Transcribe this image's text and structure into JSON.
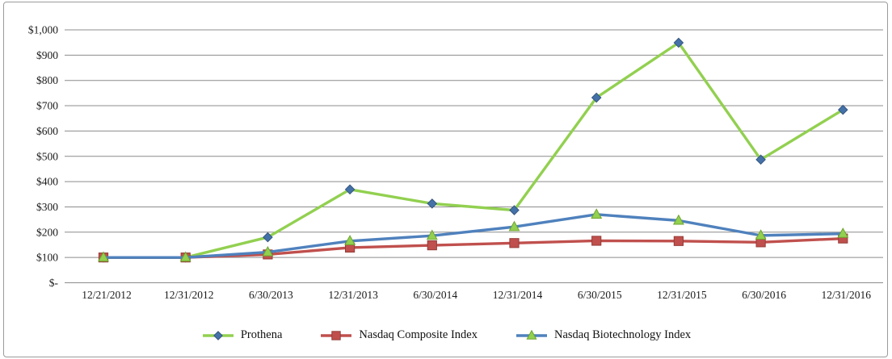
{
  "chart_data": {
    "type": "line",
    "title": "",
    "xlabel": "",
    "ylabel": "",
    "ylim": [
      0,
      1000
    ],
    "grid": "horizontal",
    "legend_position": "bottom",
    "x_categories": [
      "12/21/2012",
      "12/31/2012",
      "6/30/2013",
      "12/31/2013",
      "6/30/2014",
      "12/31/2014",
      "6/30/2015",
      "12/31/2015",
      "6/30/2016",
      "12/31/2016"
    ],
    "y_ticks": [
      {
        "value": 0,
        "label": "$-"
      },
      {
        "value": 100,
        "label": "$100"
      },
      {
        "value": 200,
        "label": "$200"
      },
      {
        "value": 300,
        "label": "$300"
      },
      {
        "value": 400,
        "label": "$400"
      },
      {
        "value": 500,
        "label": "$500"
      },
      {
        "value": 600,
        "label": "$600"
      },
      {
        "value": 700,
        "label": "$700"
      },
      {
        "value": 800,
        "label": "$800"
      },
      {
        "value": 900,
        "label": "$900"
      },
      {
        "value": 1000,
        "label": "$1,000"
      }
    ],
    "series": [
      {
        "name": "Prothena",
        "marker": "diamond",
        "line_color": "#92D050",
        "marker_color": "#4472A8",
        "marker_edge": "#355680",
        "values": [
          100,
          100,
          180,
          369,
          313,
          287,
          732,
          949,
          487,
          684
        ]
      },
      {
        "name": "Nasdaq Composite Index",
        "marker": "square",
        "line_color": "#C0504D",
        "marker_color": "#C0504D",
        "marker_edge": "#953B38",
        "values": [
          100,
          100,
          112,
          139,
          148,
          157,
          166,
          165,
          160,
          175
        ]
      },
      {
        "name": "Nasdaq Biotechnology Index",
        "marker": "triangle",
        "line_color": "#4F81BD",
        "marker_color": "#92D050",
        "marker_edge": "#6FA42E",
        "values": [
          100,
          100,
          121,
          165,
          186,
          221,
          270,
          246,
          187,
          194
        ]
      }
    ],
    "colors": {
      "gridline": "#8C8C8C",
      "frame_border": "#9B9B9B",
      "text": "#1A1A1A",
      "background": "#FFFFFF"
    }
  }
}
